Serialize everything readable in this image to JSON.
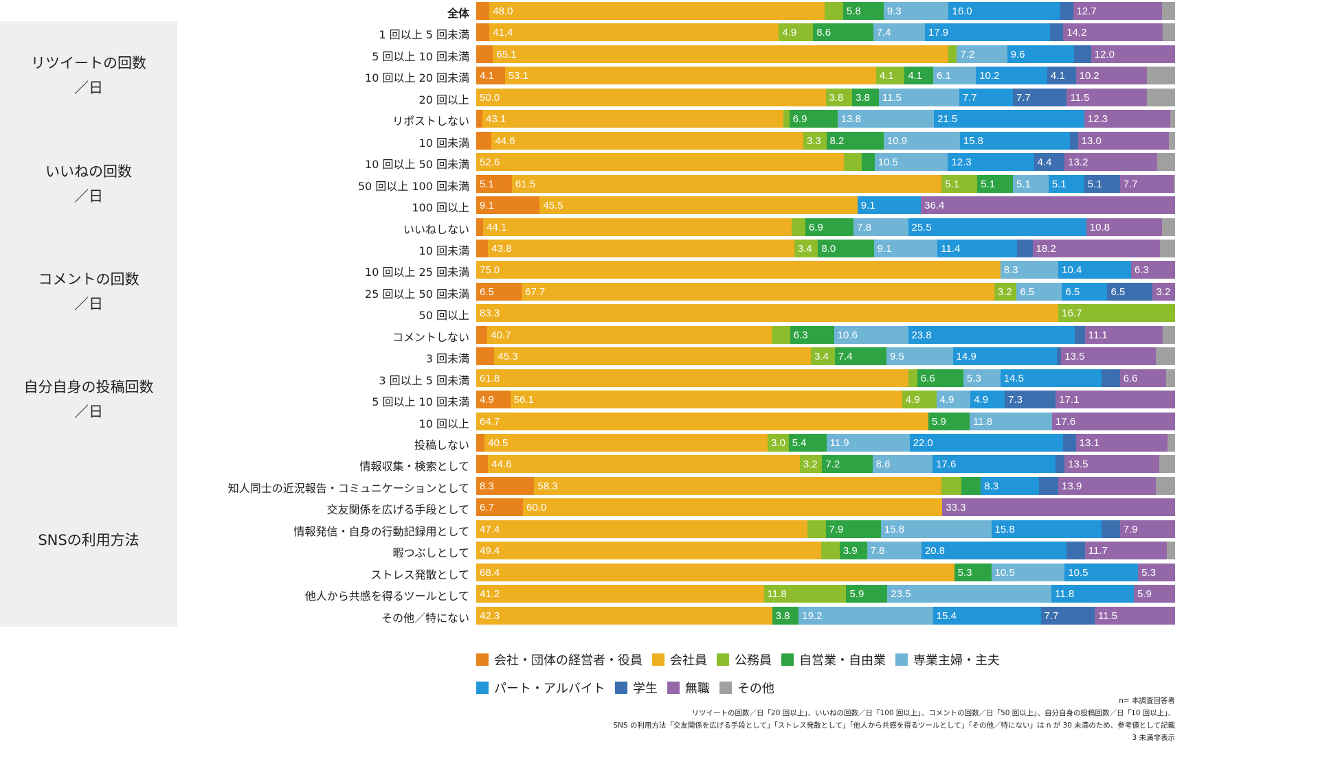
{
  "chart_data": {
    "type": "bar",
    "orientation": "horizontal",
    "stacked": true,
    "percent": true,
    "xlim": [
      0,
      100
    ],
    "series": [
      {
        "name": "会社・団体の経営者・役員",
        "color": "#e8821c"
      },
      {
        "name": "会社員",
        "color": "#eeaf20"
      },
      {
        "name": "公務員",
        "color": "#8dbd2c"
      },
      {
        "name": "自営業・自由業",
        "color": "#2ea343"
      },
      {
        "name": "専業主婦・主夫",
        "color": "#71b5d6"
      },
      {
        "name": "パート・アルバイト",
        "color": "#2196d8"
      },
      {
        "name": "学生",
        "color": "#3b6fb0"
      },
      {
        "name": "無職",
        "color": "#9468a8"
      },
      {
        "name": "その他",
        "color": "#a0a0a0"
      }
    ],
    "groups": [
      {
        "title_line1": "",
        "title_line2": "",
        "rows": [
          0
        ]
      },
      {
        "title_line1": "リツイートの回数",
        "title_line2": "／日",
        "rows": [
          1,
          2,
          3,
          4,
          5
        ]
      },
      {
        "title_line1": "いいねの回数",
        "title_line2": "／日",
        "rows": [
          6,
          7,
          8,
          9,
          10
        ]
      },
      {
        "title_line1": "コメントの回数",
        "title_line2": "／日",
        "rows": [
          11,
          12,
          13,
          14,
          15
        ]
      },
      {
        "title_line1": "自分自身の投稿回数",
        "title_line2": "／日",
        "rows": [
          16,
          17,
          18,
          19,
          20
        ]
      },
      {
        "title_line1": "SNSの利用方法",
        "title_line2": "",
        "rows": [
          21,
          22,
          23,
          24,
          25,
          26,
          27,
          28
        ]
      }
    ],
    "rows": [
      {
        "label": "全体",
        "bold": true,
        "values": [
          1.9,
          48.0,
          2.6,
          5.8,
          9.3,
          16.0,
          1.8,
          12.7,
          1.9
        ],
        "labels": [
          "",
          "48.0",
          "",
          "5.8",
          "9.3",
          "16.0",
          "",
          "12.7",
          ""
        ]
      },
      {
        "label": "1 回以上 5 回未満",
        "values": [
          1.9,
          41.4,
          4.9,
          8.6,
          7.4,
          17.9,
          1.9,
          14.2,
          1.8
        ],
        "labels": [
          "",
          "41.4",
          "4.9",
          "8.6",
          "7.4",
          "17.9",
          "",
          "14.2",
          ""
        ]
      },
      {
        "label": "5 回以上 10 回未満",
        "values": [
          2.4,
          65.1,
          1.2,
          0,
          7.2,
          9.6,
          2.4,
          12.0,
          0
        ],
        "labels": [
          "",
          "65.1",
          "",
          "",
          "7.2",
          "9.6",
          "",
          "12.0",
          ""
        ]
      },
      {
        "label": "10 回以上 20 回未満",
        "values": [
          4.1,
          53.1,
          4.1,
          4.1,
          6.1,
          10.2,
          4.1,
          10.2,
          4.0
        ],
        "labels": [
          "4.1",
          "53.1",
          "4.1",
          "4.1",
          "6.1",
          "10.2",
          "4.1",
          "10.2",
          ""
        ]
      },
      {
        "label": "20 回以上",
        "values": [
          0,
          50.0,
          3.8,
          3.8,
          11.5,
          7.7,
          7.7,
          11.5,
          4.0
        ],
        "labels": [
          "",
          "50.0",
          "3.8",
          "3.8",
          "11.5",
          "7.7",
          "7.7",
          "11.5",
          ""
        ]
      },
      {
        "label": "リポストしない",
        "values": [
          0.9,
          43.1,
          0.8,
          6.9,
          13.8,
          21.5,
          0,
          12.3,
          0.7
        ],
        "labels": [
          "",
          "43.1",
          "",
          "6.9",
          "13.8",
          "21.5",
          "",
          "12.3",
          ""
        ]
      },
      {
        "label": "10 回未満",
        "values": [
          2.2,
          44.6,
          3.3,
          8.2,
          10.9,
          15.8,
          1.1,
          13.0,
          0.9
        ],
        "labels": [
          "",
          "44.6",
          "3.3",
          "8.2",
          "10.9",
          "15.8",
          "",
          "13.0",
          ""
        ]
      },
      {
        "label": "10 回以上 50 回未満",
        "values": [
          0,
          52.6,
          2.6,
          1.8,
          10.5,
          12.3,
          4.4,
          13.2,
          2.6
        ],
        "labels": [
          "",
          "52.6",
          "",
          "",
          "10.5",
          "12.3",
          "4.4",
          "13.2",
          ""
        ]
      },
      {
        "label": "50 回以上 100 回未満",
        "values": [
          5.1,
          61.5,
          5.1,
          5.1,
          5.1,
          5.1,
          5.1,
          7.7,
          0.2
        ],
        "labels": [
          "5.1",
          "61.5",
          "5.1",
          "5.1",
          "5.1",
          "5.1",
          "5.1",
          "7.7",
          ""
        ]
      },
      {
        "label": "100 回以上",
        "values": [
          9.1,
          45.5,
          0,
          0,
          0,
          9.1,
          0,
          36.4,
          0
        ],
        "labels": [
          "9.1",
          "45.5",
          "",
          "",
          "",
          "9.1",
          "",
          "36.4",
          ""
        ]
      },
      {
        "label": "いいねしない",
        "values": [
          1.0,
          44.1,
          2.0,
          6.9,
          7.8,
          25.5,
          0,
          10.8,
          1.9
        ],
        "labels": [
          "",
          "44.1",
          "",
          "6.9",
          "7.8",
          "25.5",
          "",
          "10.8",
          ""
        ]
      },
      {
        "label": "10 回未満",
        "values": [
          1.7,
          43.8,
          3.4,
          8.0,
          9.1,
          11.4,
          2.2,
          18.2,
          2.2
        ],
        "labels": [
          "",
          "43.8",
          "3.4",
          "8.0",
          "9.1",
          "11.4",
          "",
          "18.2",
          ""
        ]
      },
      {
        "label": "10 回以上 25 回未満",
        "values": [
          0,
          75.0,
          0,
          0,
          8.3,
          10.4,
          0,
          6.3,
          0
        ],
        "labels": [
          "",
          "75.0",
          "",
          "",
          "8.3",
          "10.4",
          "",
          "6.3",
          ""
        ]
      },
      {
        "label": "25 回以上 50 回未満",
        "values": [
          6.5,
          67.7,
          3.2,
          0,
          6.5,
          6.5,
          6.5,
          3.2,
          0
        ],
        "labels": [
          "6.5",
          "67.7",
          "3.2",
          "",
          "6.5",
          "6.5",
          "6.5",
          "3.2",
          ""
        ]
      },
      {
        "label": "50 回以上",
        "values": [
          0,
          83.3,
          16.7,
          0,
          0,
          0,
          0,
          0,
          0
        ],
        "labels": [
          "",
          "83.3",
          "16.7",
          "",
          "",
          "",
          "",
          "",
          ""
        ]
      },
      {
        "label": "コメントしない",
        "values": [
          1.6,
          40.7,
          2.6,
          6.3,
          10.6,
          23.8,
          1.5,
          11.1,
          1.8
        ],
        "labels": [
          "",
          "40.7",
          "",
          "6.3",
          "10.6",
          "23.8",
          "",
          "11.1",
          ""
        ]
      },
      {
        "label": "3 回未満",
        "values": [
          2.6,
          45.3,
          3.4,
          7.4,
          9.5,
          14.9,
          0.6,
          13.5,
          2.8
        ],
        "labels": [
          "",
          "45.3",
          "3.4",
          "7.4",
          "9.5",
          "14.9",
          "",
          "13.5",
          ""
        ]
      },
      {
        "label": "3 回以上 5 回未満",
        "values": [
          0,
          61.8,
          1.3,
          6.6,
          5.3,
          14.5,
          2.6,
          6.6,
          1.3
        ],
        "labels": [
          "",
          "61.8",
          "",
          "6.6",
          "5.3",
          "14.5",
          "",
          "6.6",
          ""
        ]
      },
      {
        "label": "5 回以上 10 回未満",
        "values": [
          4.9,
          56.1,
          4.9,
          0,
          4.9,
          4.9,
          7.3,
          17.1,
          0
        ],
        "labels": [
          "4.9",
          "56.1",
          "4.9",
          "",
          "4.9",
          "4.9",
          "7.3",
          "17.1",
          ""
        ]
      },
      {
        "label": "10 回以上",
        "values": [
          0,
          64.7,
          0,
          5.9,
          11.8,
          0,
          0,
          17.6,
          0
        ],
        "labels": [
          "",
          "64.7",
          "",
          "5.9",
          "11.8",
          "",
          "",
          "17.6",
          ""
        ]
      },
      {
        "label": "投稿しない",
        "values": [
          1.2,
          40.5,
          3.0,
          5.4,
          11.9,
          22.0,
          1.8,
          13.1,
          1.1
        ],
        "labels": [
          "",
          "40.5",
          "3.0",
          "5.4",
          "11.9",
          "22.0",
          "",
          "13.1",
          ""
        ]
      },
      {
        "label": "情報収集・検索として",
        "values": [
          1.7,
          44.6,
          3.2,
          7.2,
          8.6,
          17.6,
          1.3,
          13.5,
          2.3
        ],
        "labels": [
          "",
          "44.6",
          "3.2",
          "7.2",
          "8.6",
          "17.6",
          "",
          "13.5",
          ""
        ]
      },
      {
        "label": "知人同士の近況報告・コミュニケーションとして",
        "values": [
          8.3,
          58.3,
          2.8,
          2.8,
          0,
          8.3,
          2.8,
          13.9,
          2.8
        ],
        "labels": [
          "8.3",
          "58.3",
          "",
          "",
          "",
          "8.3",
          "",
          "13.9",
          ""
        ]
      },
      {
        "label": "交友関係を広げる手段として",
        "values": [
          6.7,
          60.0,
          0,
          0,
          0,
          0,
          0,
          33.3,
          0
        ],
        "labels": [
          "6.7",
          "60.0",
          "",
          "",
          "",
          "",
          "",
          "33.3",
          ""
        ]
      },
      {
        "label": "情報発信・自身の行動記録用として",
        "values": [
          0,
          47.4,
          2.6,
          7.9,
          15.8,
          15.8,
          2.6,
          7.9,
          0
        ],
        "labels": [
          "",
          "47.4",
          "",
          "7.9",
          "15.8",
          "15.8",
          "",
          "7.9",
          ""
        ]
      },
      {
        "label": "暇つぶしとして",
        "values": [
          0,
          49.4,
          2.6,
          3.9,
          7.8,
          20.8,
          2.6,
          11.7,
          1.2
        ],
        "labels": [
          "",
          "49.4",
          "",
          "3.9",
          "7.8",
          "20.8",
          "",
          "11.7",
          ""
        ]
      },
      {
        "label": "ストレス発散として",
        "values": [
          0,
          68.4,
          0,
          5.3,
          10.5,
          10.5,
          0,
          5.3,
          0
        ],
        "labels": [
          "",
          "68.4",
          "",
          "5.3",
          "10.5",
          "10.5",
          "",
          "5.3",
          ""
        ]
      },
      {
        "label": "他人から共感を得るツールとして",
        "values": [
          0,
          41.2,
          11.8,
          5.9,
          23.5,
          11.8,
          0,
          5.9,
          0
        ],
        "labels": [
          "",
          "41.2",
          "11.8",
          "5.9",
          "23.5",
          "11.8",
          "",
          "5.9",
          ""
        ]
      },
      {
        "label": "その他／特にない",
        "values": [
          0,
          42.3,
          0,
          3.8,
          19.2,
          15.4,
          7.7,
          11.5,
          0
        ],
        "labels": [
          "",
          "42.3",
          "",
          "3.8",
          "19.2",
          "15.4",
          "7.7",
          "11.5",
          ""
        ]
      }
    ],
    "legend_placement": "bottom",
    "legend_rows": [
      [
        0,
        1,
        2,
        3,
        4
      ],
      [
        5,
        6,
        7,
        8
      ]
    ]
  },
  "notes": {
    "line1": "n= 本調査回答者",
    "line2": "リツイートの回数／日「20 回以上」、いいねの回数／日「100 回以上」、コメントの回数／日「50 回以上」、自分自身の投稿回数／日「10 回以上」、",
    "line3": "SNS の利用方法「交友関係を広げる手段として」「ストレス発散として」「他人から共感を得るツールとして」「その他／特にない」は n が 30 未満のため、参考値として記載",
    "line4": "3 未満非表示"
  }
}
